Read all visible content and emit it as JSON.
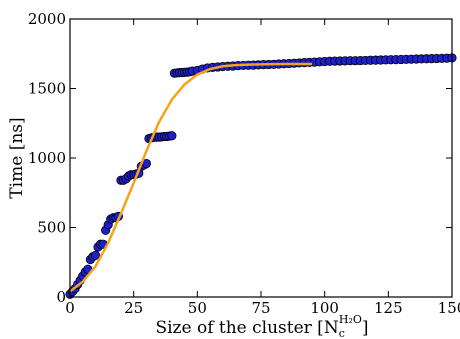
{
  "chart_data": {
    "type": "scatter",
    "title": "",
    "xlabel": "Size of the cluster [N",
    "xlabel_sub": "c",
    "xlabel_sup": "H₂O",
    "xlabel_close": "]",
    "ylabel": "Time [ns]",
    "xlim": [
      0,
      150
    ],
    "ylim": [
      0,
      2000
    ],
    "x_ticks": [
      0,
      25,
      50,
      75,
      100,
      125,
      150
    ],
    "y_ticks": [
      0,
      500,
      1000,
      1500,
      2000
    ],
    "x_tick_labels": [
      "0",
      "25",
      "50",
      "75",
      "100",
      "125",
      "150"
    ],
    "y_tick_labels": [
      "0",
      "500",
      "1000",
      "1500",
      "2000"
    ],
    "grid": false,
    "legend": "none",
    "marker_color": "#1f1fcf",
    "marker_edge": "#000000",
    "fit_color": "#f5a31a",
    "series": [
      {
        "kind": "points",
        "x": [
          0,
          1,
          2,
          3,
          4,
          5,
          6,
          7,
          8,
          9,
          10,
          11,
          12,
          13,
          14,
          15,
          16,
          17,
          18,
          19,
          20,
          21,
          22,
          23,
          24,
          25,
          26,
          27,
          28,
          29,
          30,
          31,
          32,
          33,
          34,
          35,
          36,
          37,
          38,
          39,
          40,
          41,
          42,
          43,
          44,
          45,
          46,
          47,
          48,
          50,
          52,
          54,
          56,
          58,
          60,
          62,
          64,
          66,
          68,
          70,
          72,
          74,
          76,
          78,
          80,
          82,
          84,
          86,
          88,
          90,
          92,
          94,
          96,
          98,
          100,
          102,
          104,
          106,
          108,
          110,
          112,
          114,
          116,
          118,
          120,
          122,
          124,
          126,
          128,
          130,
          132,
          134,
          136,
          138,
          140,
          142,
          144,
          146,
          148,
          150
        ],
        "y": [
          20,
          40,
          60,
          90,
          120,
          150,
          180,
          200,
          270,
          290,
          300,
          360,
          380,
          380,
          480,
          520,
          560,
          570,
          570,
          580,
          840,
          840,
          850,
          870,
          880,
          880,
          885,
          890,
          940,
          950,
          960,
          1140,
          1145,
          1148,
          1150,
          1150,
          1152,
          1155,
          1155,
          1158,
          1160,
          1610,
          1612,
          1614,
          1615,
          1616,
          1618,
          1620,
          1625,
          1630,
          1640,
          1648,
          1652,
          1655,
          1658,
          1660,
          1662,
          1665,
          1666,
          1667,
          1668,
          1670,
          1672,
          1673,
          1674,
          1676,
          1678,
          1680,
          1682,
          1684,
          1686,
          1688,
          1690,
          1692,
          1694,
          1696,
          1697,
          1698,
          1699,
          1700,
          1700,
          1701,
          1702,
          1703,
          1704,
          1705,
          1706,
          1707,
          1708,
          1709,
          1710,
          1711,
          1712,
          1713,
          1714,
          1715,
          1716,
          1717,
          1718,
          1720
        ]
      },
      {
        "kind": "fit",
        "x": [
          0,
          5,
          10,
          15,
          20,
          25,
          30,
          35,
          40,
          45,
          50,
          55,
          60,
          65,
          70,
          75,
          80,
          85,
          90,
          95
        ],
        "y": [
          40,
          110,
          220,
          390,
          600,
          820,
          1050,
          1260,
          1420,
          1530,
          1600,
          1640,
          1660,
          1668,
          1672,
          1674,
          1675,
          1676,
          1676,
          1676
        ]
      }
    ]
  }
}
